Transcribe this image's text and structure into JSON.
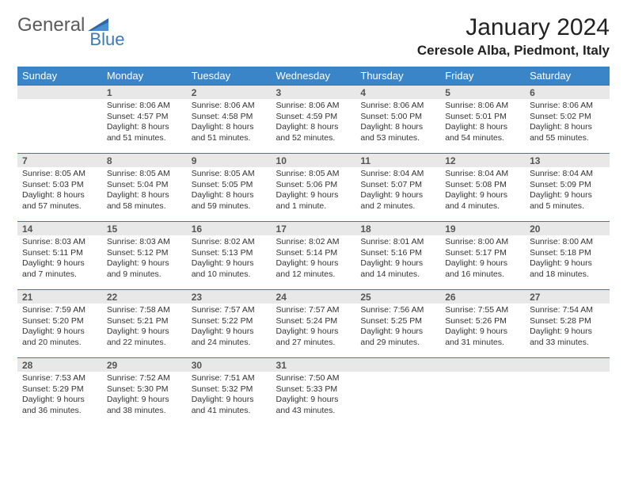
{
  "logo": {
    "part1": "General",
    "part2": "Blue"
  },
  "title": "January 2024",
  "location": "Ceresole Alba, Piedmont, Italy",
  "header_bg": "#3a85c7",
  "header_fg": "#ffffff",
  "daynum_bg": "#e8e8e8",
  "divider_color": "#3a7ab8",
  "text_color": "#333333",
  "weekdays": [
    "Sunday",
    "Monday",
    "Tuesday",
    "Wednesday",
    "Thursday",
    "Friday",
    "Saturday"
  ],
  "weeks": [
    [
      null,
      {
        "n": "1",
        "sr": "8:06 AM",
        "ss": "4:57 PM",
        "dl": "8 hours and 51 minutes."
      },
      {
        "n": "2",
        "sr": "8:06 AM",
        "ss": "4:58 PM",
        "dl": "8 hours and 51 minutes."
      },
      {
        "n": "3",
        "sr": "8:06 AM",
        "ss": "4:59 PM",
        "dl": "8 hours and 52 minutes."
      },
      {
        "n": "4",
        "sr": "8:06 AM",
        "ss": "5:00 PM",
        "dl": "8 hours and 53 minutes."
      },
      {
        "n": "5",
        "sr": "8:06 AM",
        "ss": "5:01 PM",
        "dl": "8 hours and 54 minutes."
      },
      {
        "n": "6",
        "sr": "8:06 AM",
        "ss": "5:02 PM",
        "dl": "8 hours and 55 minutes."
      }
    ],
    [
      {
        "n": "7",
        "sr": "8:05 AM",
        "ss": "5:03 PM",
        "dl": "8 hours and 57 minutes."
      },
      {
        "n": "8",
        "sr": "8:05 AM",
        "ss": "5:04 PM",
        "dl": "8 hours and 58 minutes."
      },
      {
        "n": "9",
        "sr": "8:05 AM",
        "ss": "5:05 PM",
        "dl": "8 hours and 59 minutes."
      },
      {
        "n": "10",
        "sr": "8:05 AM",
        "ss": "5:06 PM",
        "dl": "9 hours and 1 minute."
      },
      {
        "n": "11",
        "sr": "8:04 AM",
        "ss": "5:07 PM",
        "dl": "9 hours and 2 minutes."
      },
      {
        "n": "12",
        "sr": "8:04 AM",
        "ss": "5:08 PM",
        "dl": "9 hours and 4 minutes."
      },
      {
        "n": "13",
        "sr": "8:04 AM",
        "ss": "5:09 PM",
        "dl": "9 hours and 5 minutes."
      }
    ],
    [
      {
        "n": "14",
        "sr": "8:03 AM",
        "ss": "5:11 PM",
        "dl": "9 hours and 7 minutes."
      },
      {
        "n": "15",
        "sr": "8:03 AM",
        "ss": "5:12 PM",
        "dl": "9 hours and 9 minutes."
      },
      {
        "n": "16",
        "sr": "8:02 AM",
        "ss": "5:13 PM",
        "dl": "9 hours and 10 minutes."
      },
      {
        "n": "17",
        "sr": "8:02 AM",
        "ss": "5:14 PM",
        "dl": "9 hours and 12 minutes."
      },
      {
        "n": "18",
        "sr": "8:01 AM",
        "ss": "5:16 PM",
        "dl": "9 hours and 14 minutes."
      },
      {
        "n": "19",
        "sr": "8:00 AM",
        "ss": "5:17 PM",
        "dl": "9 hours and 16 minutes."
      },
      {
        "n": "20",
        "sr": "8:00 AM",
        "ss": "5:18 PM",
        "dl": "9 hours and 18 minutes."
      }
    ],
    [
      {
        "n": "21",
        "sr": "7:59 AM",
        "ss": "5:20 PM",
        "dl": "9 hours and 20 minutes."
      },
      {
        "n": "22",
        "sr": "7:58 AM",
        "ss": "5:21 PM",
        "dl": "9 hours and 22 minutes."
      },
      {
        "n": "23",
        "sr": "7:57 AM",
        "ss": "5:22 PM",
        "dl": "9 hours and 24 minutes."
      },
      {
        "n": "24",
        "sr": "7:57 AM",
        "ss": "5:24 PM",
        "dl": "9 hours and 27 minutes."
      },
      {
        "n": "25",
        "sr": "7:56 AM",
        "ss": "5:25 PM",
        "dl": "9 hours and 29 minutes."
      },
      {
        "n": "26",
        "sr": "7:55 AM",
        "ss": "5:26 PM",
        "dl": "9 hours and 31 minutes."
      },
      {
        "n": "27",
        "sr": "7:54 AM",
        "ss": "5:28 PM",
        "dl": "9 hours and 33 minutes."
      }
    ],
    [
      {
        "n": "28",
        "sr": "7:53 AM",
        "ss": "5:29 PM",
        "dl": "9 hours and 36 minutes."
      },
      {
        "n": "29",
        "sr": "7:52 AM",
        "ss": "5:30 PM",
        "dl": "9 hours and 38 minutes."
      },
      {
        "n": "30",
        "sr": "7:51 AM",
        "ss": "5:32 PM",
        "dl": "9 hours and 41 minutes."
      },
      {
        "n": "31",
        "sr": "7:50 AM",
        "ss": "5:33 PM",
        "dl": "9 hours and 43 minutes."
      },
      null,
      null,
      null
    ]
  ],
  "labels": {
    "sunrise": "Sunrise:",
    "sunset": "Sunset:",
    "daylight": "Daylight:"
  }
}
